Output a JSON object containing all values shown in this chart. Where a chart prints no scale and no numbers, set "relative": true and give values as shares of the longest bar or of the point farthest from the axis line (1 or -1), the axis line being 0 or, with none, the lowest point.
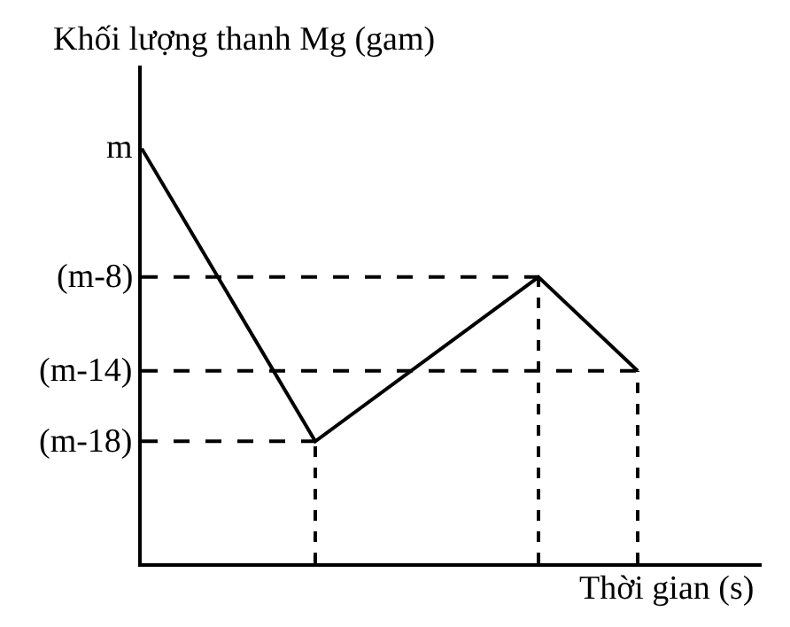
{
  "chart_data": {
    "type": "line",
    "ylabel": "Khối lượng thanh Mg (gam)",
    "xlabel": "Thời gian (s)",
    "annotations": [
      "m"
    ],
    "categories": [
      null,
      null,
      null,
      null,
      null,
      null,
      null,
      null,
      null,
      null,
      null,
      null,
      null,
      null,
      null,
      null,
      null,
      null,
      null,
      null,
      null,
      null,
      null,
      null,
      null,
      null
    ],
    "values": [
      1,
      null,
      null,
      null,
      null,
      null,
      null,
      0.294,
      null,
      null,
      null,
      null,
      null,
      null,
      null,
      null,
      0.69,
      null,
      null,
      null,
      0.464,
      null,
      null,
      null,
      null,
      null
    ],
    "color": "#000000",
    "relative": true,
    "marker": "none",
    "line_style": "solid",
    "ref_lines": [
      {
        "axis": "y",
        "value": 0.69,
        "label": "(m-8)",
        "line_style": "dashed"
      },
      {
        "axis": "y",
        "value": 0.464,
        "label": "(m-14)",
        "line_style": "dashed"
      },
      {
        "axis": "y",
        "value": 0.294,
        "label": "(m-18)",
        "line_style": "dashed"
      }
    ]
  }
}
